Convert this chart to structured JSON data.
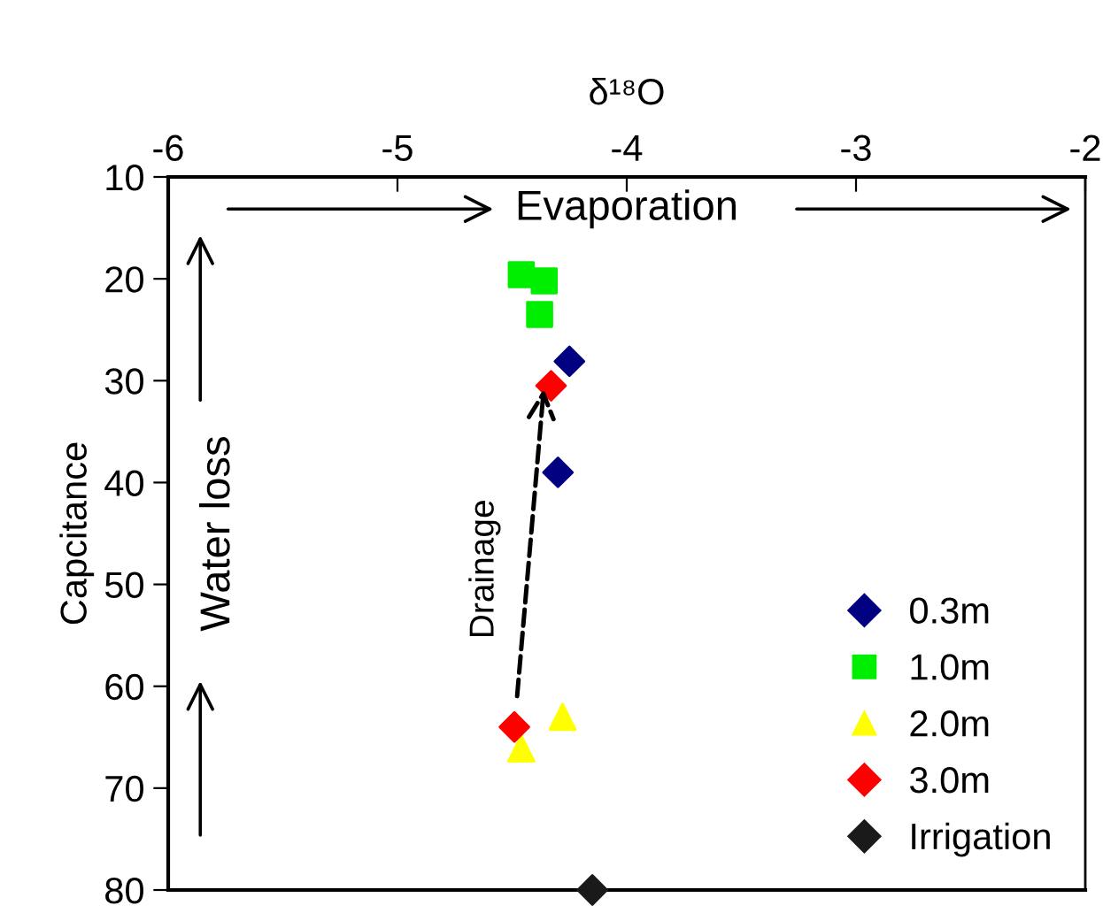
{
  "chart_data": {
    "type": "scatter",
    "xlabel": "δ¹⁸O",
    "ylabel": "Capcitance",
    "xlim": [
      -6,
      -2
    ],
    "xticks": [
      -6,
      -5,
      -4,
      -3,
      -2
    ],
    "ylim": [
      80,
      10
    ],
    "yticks": [
      10,
      20,
      30,
      40,
      50,
      60,
      70,
      80
    ],
    "grid": false,
    "legend": "bottom right",
    "series": [
      {
        "name": "0.3m",
        "color": "#000080",
        "marker": "diamond",
        "x": [
          -4.25,
          -4.3
        ],
        "values": [
          28.1,
          39.0
        ]
      },
      {
        "name": "1.0m",
        "color": "#00ee00",
        "marker": "square",
        "x": [
          -4.46,
          -4.36,
          -4.38
        ],
        "values": [
          19.6,
          20.2,
          23.5
        ]
      },
      {
        "name": "2.0m",
        "color": "#ffff00",
        "marker": "triangle",
        "x": [
          -4.28,
          -4.46
        ],
        "values": [
          63.0,
          66.1
        ]
      },
      {
        "name": "3.0m",
        "color": "#ff0000",
        "marker": "diamond",
        "x": [
          -4.33,
          -4.49
        ],
        "values": [
          30.5,
          64.0
        ]
      },
      {
        "name": "Irrigation",
        "color": "#1a1a1a",
        "marker": "diamond",
        "x": [
          -4.15
        ],
        "values": [
          80
        ]
      }
    ],
    "annotations": [
      "Evaporation",
      "Water loss",
      "Drainage"
    ]
  }
}
